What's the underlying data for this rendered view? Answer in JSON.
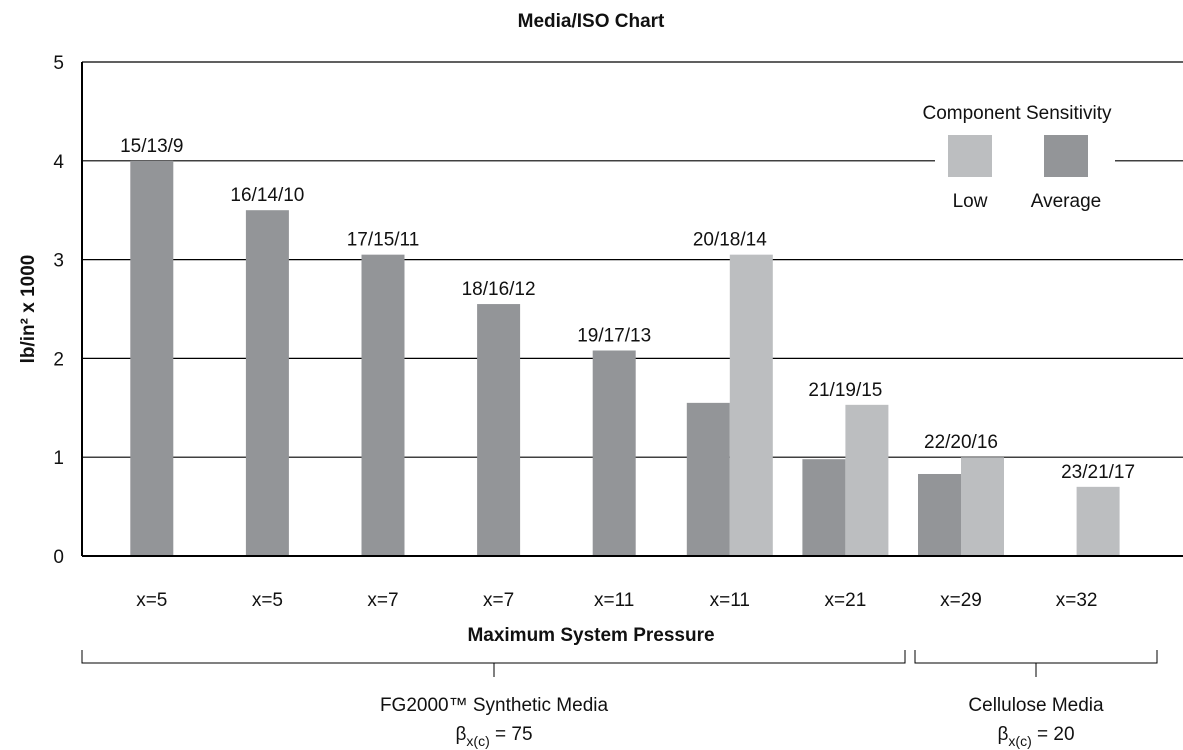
{
  "chart_data": {
    "type": "bar",
    "title": "Media/ISO Chart",
    "x_label": "Maximum System Pressure",
    "y_label": "lb/in² x 1000",
    "categories": [
      "x=5",
      "x=5",
      "x=7",
      "x=7",
      "x=11",
      "x=11",
      "x=21",
      "x=29",
      "x=32"
    ],
    "iso_codes": [
      "15/13/9",
      "16/14/10",
      "17/15/11",
      "18/16/12",
      "19/17/13",
      "20/18/14",
      "21/19/15",
      "22/20/16",
      "23/21/17"
    ],
    "legend_title": "Component Sensitivity",
    "legend": "upper right",
    "grid": true,
    "series": [
      {
        "name": "Average",
        "color": "#939598",
        "values": [
          4,
          3.5,
          3.05,
          2.55,
          2.08,
          1.55,
          0.98,
          0.83,
          null
        ]
      },
      {
        "name": "Low",
        "color": "#bcbec0",
        "values": [
          null,
          null,
          null,
          null,
          null,
          3.05,
          1.53,
          1.0,
          0.7
        ]
      }
    ],
    "ylim": [
      0,
      5
    ],
    "yticks": [
      0,
      1,
      2,
      3,
      4,
      5
    ],
    "groups": [
      {
        "label": "FG2000™ Synthetic Media",
        "symbol": "β",
        "subscript": "x(c)",
        "suffix": " = 75"
      },
      {
        "label": "Cellulose Media",
        "symbol": "β",
        "subscript": "x(c)",
        "suffix": " = 20"
      }
    ]
  }
}
